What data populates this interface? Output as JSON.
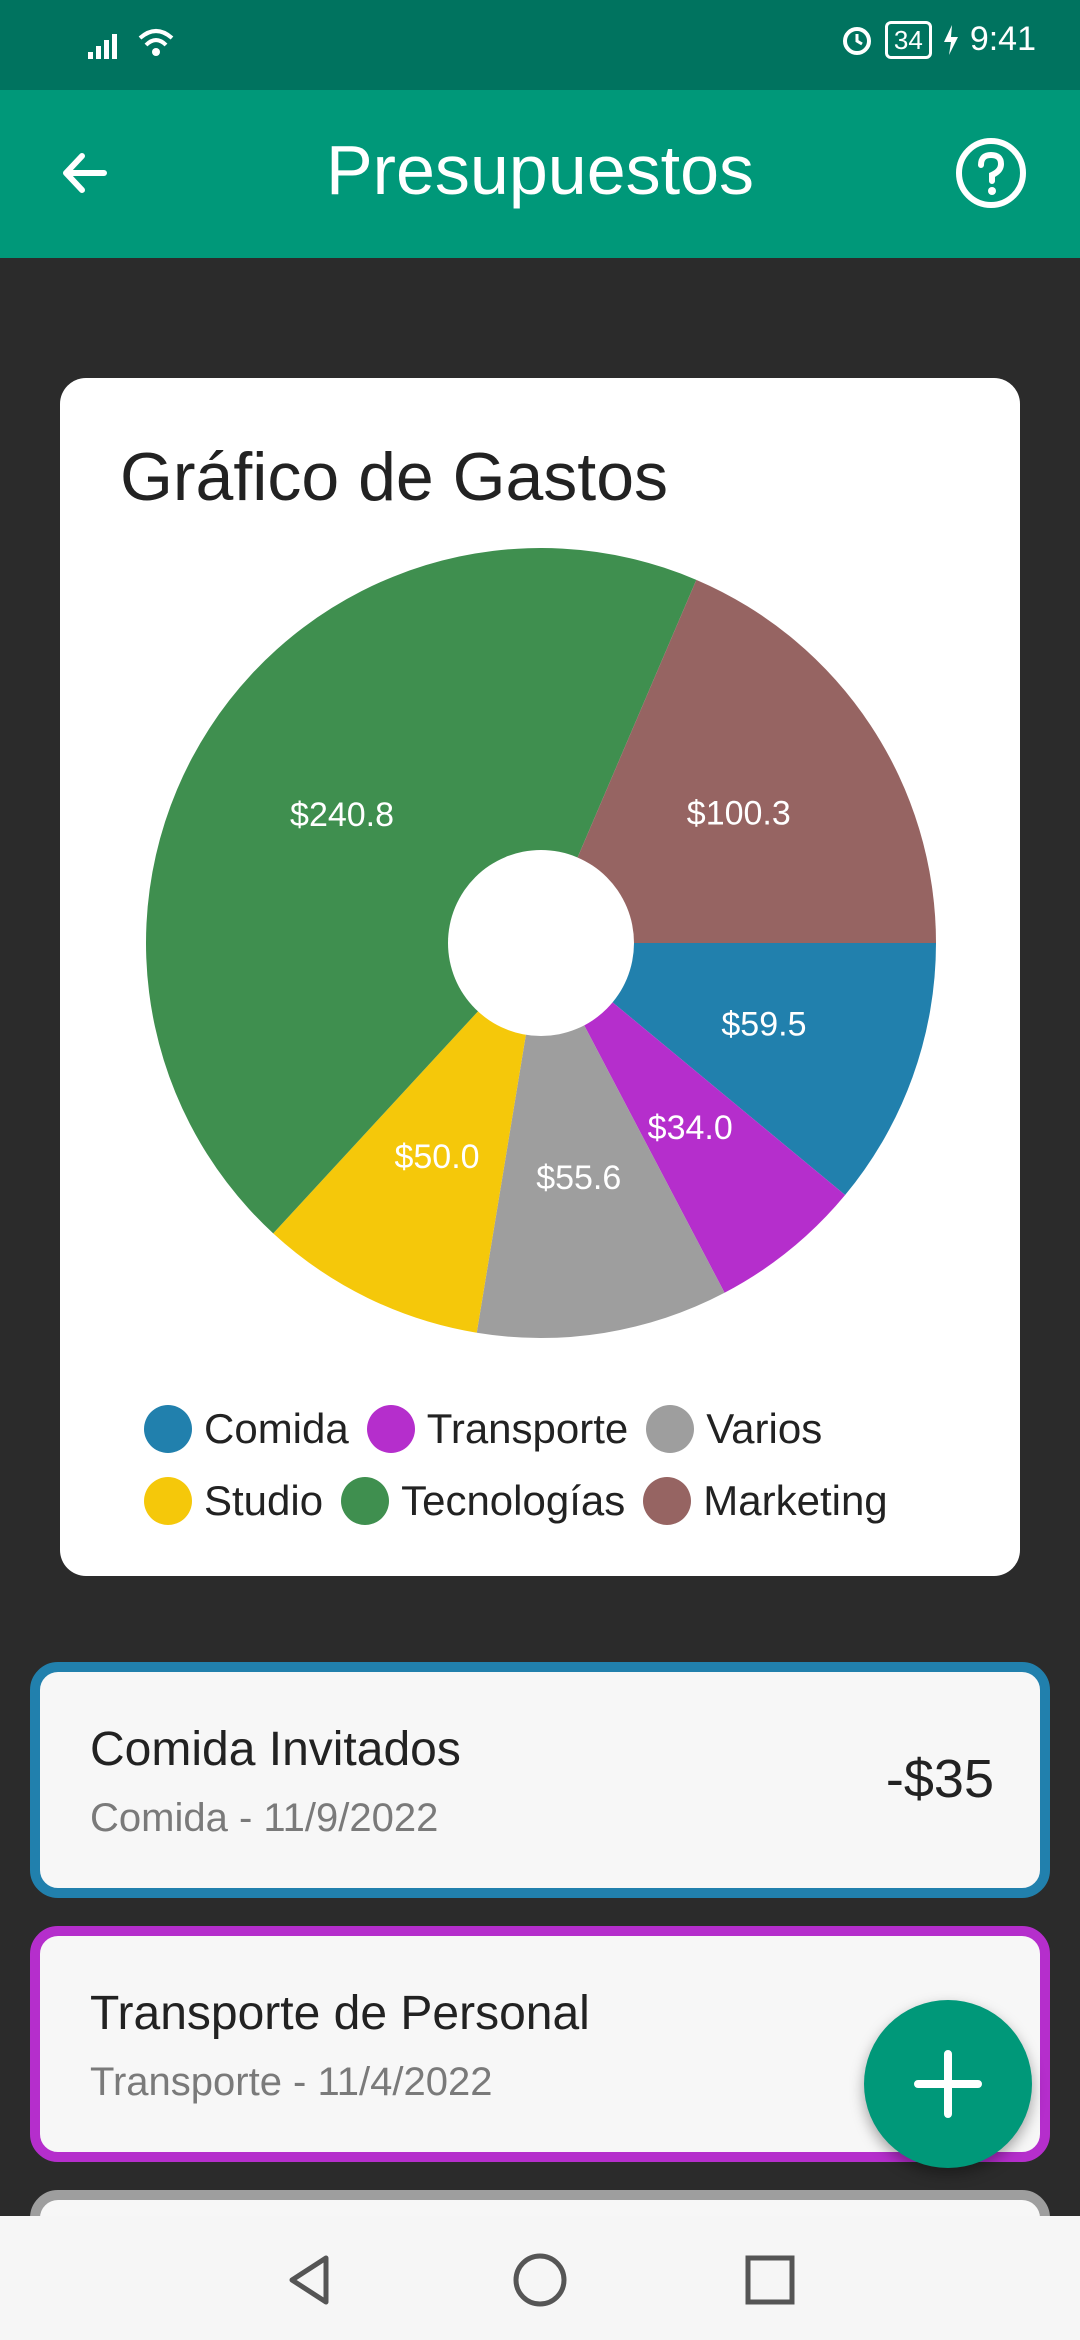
{
  "status_bar": {
    "time": "9:41",
    "battery": "34"
  },
  "app_bar": {
    "title": "Presupuestos",
    "back_icon": "back-arrow-icon",
    "help_icon": "help-icon"
  },
  "chart_card": {
    "title": "Gráfico de Gastos",
    "chart_data": {
      "type": "pie",
      "title": "Gráfico de Gastos",
      "categories": [
        "Comida",
        "Transporte",
        "Varios",
        "Studio",
        "Tecnologías",
        "Marketing"
      ],
      "values": [
        59.5,
        34.0,
        55.6,
        50.0,
        240.8,
        100.3
      ],
      "labels": [
        "$59.5",
        "$34.0",
        "$55.6",
        "$50.0",
        "$240.8",
        "$100.3"
      ],
      "colors": [
        "#2180ad",
        "#b52ecc",
        "#9e9e9e",
        "#f5c80a",
        "#3f8f4f",
        "#966462"
      ],
      "legend": "bottom",
      "donut_hole": true
    },
    "legend": [
      {
        "label": "Comida",
        "color": "#2180ad"
      },
      {
        "label": "Transporte",
        "color": "#b52ecc"
      },
      {
        "label": "Varios",
        "color": "#9e9e9e"
      },
      {
        "label": "Studio",
        "color": "#f5c80a"
      },
      {
        "label": "Tecnologías",
        "color": "#3f8f4f"
      },
      {
        "label": "Marketing",
        "color": "#966462"
      }
    ]
  },
  "transactions": [
    {
      "title": "Comida Invitados",
      "subtitle": "Comida - 11/9/2022",
      "amount": "-$35",
      "color": "#2180ad"
    },
    {
      "title": "Transporte de Personal",
      "subtitle": "Transporte - 11/4/2022",
      "amount": "",
      "color": "#b52ecc"
    }
  ],
  "fab": {
    "icon": "plus-icon"
  },
  "nav": {
    "back": "nav-back-icon",
    "home": "nav-home-icon",
    "recents": "nav-recents-icon"
  }
}
